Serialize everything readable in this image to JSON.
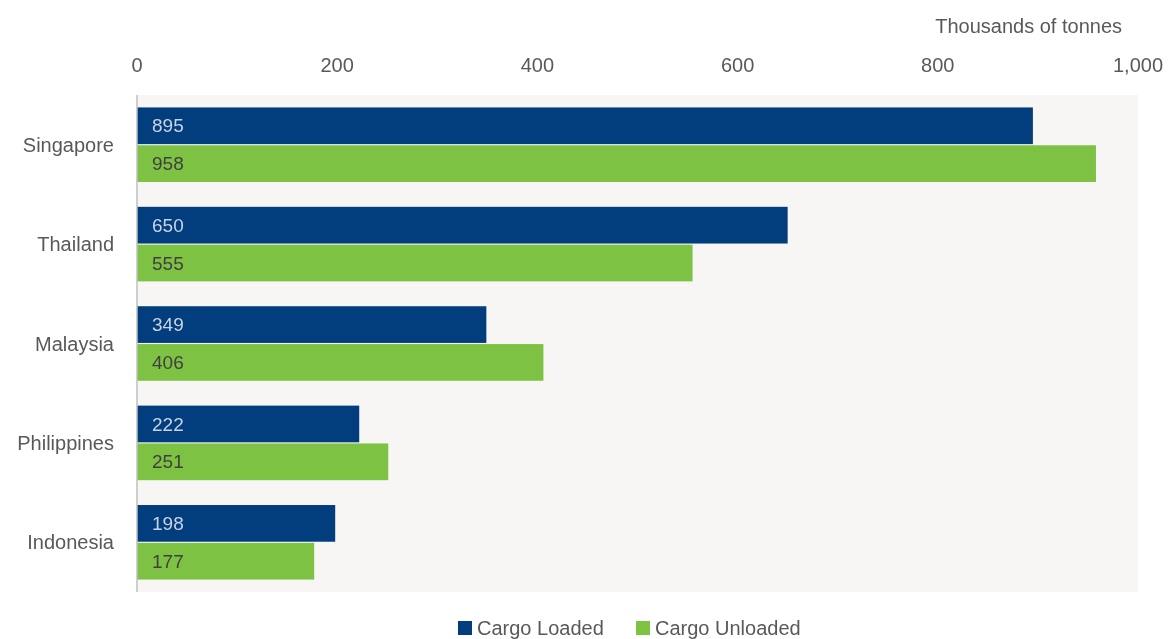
{
  "chart_data": {
    "type": "bar",
    "orientation": "horizontal",
    "xlabel": "Thousands of tonnes",
    "categories": [
      "Singapore",
      "Thailand",
      "Malaysia",
      "Philippines",
      "Indonesia"
    ],
    "series": [
      {
        "name": "Cargo Loaded",
        "color": "#023e7d",
        "values": [
          895,
          650,
          349,
          222,
          198
        ]
      },
      {
        "name": "Cargo Unloaded",
        "color": "#7dc242",
        "values": [
          958,
          555,
          406,
          251,
          177
        ]
      }
    ],
    "xlim": [
      0,
      1000
    ],
    "xticks": [
      0,
      200,
      400,
      600,
      800,
      {
        "value": 1000,
        "label": "1,000"
      }
    ],
    "data_labels": true,
    "legend": "bottom",
    "grid": false
  }
}
